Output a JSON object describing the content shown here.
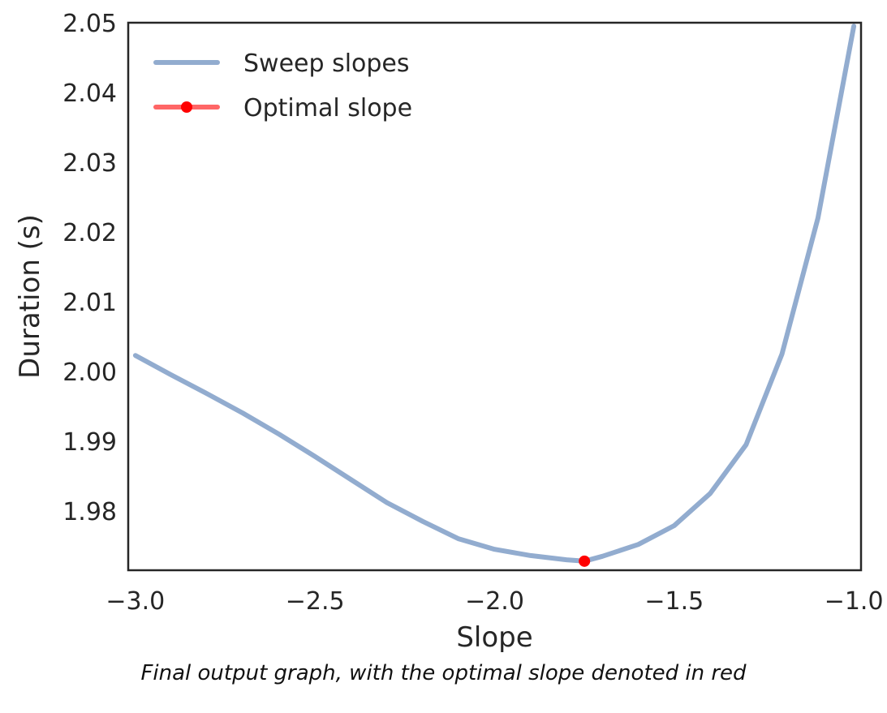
{
  "chart_data": {
    "type": "line",
    "xlabel": "Slope",
    "ylabel": "Duration (s)",
    "xlim": [
      -3.02,
      -0.98
    ],
    "ylim": [
      1.9715,
      2.05
    ],
    "x_ticks": [
      -3.0,
      -2.5,
      -2.0,
      -1.5,
      -1.0
    ],
    "x_tick_labels": [
      "−3.0",
      "−2.5",
      "−2.0",
      "−1.5",
      "−1.0"
    ],
    "y_ticks": [
      1.98,
      1.99,
      2.0,
      2.01,
      2.02,
      2.03,
      2.04,
      2.05
    ],
    "y_tick_labels": [
      "1.98",
      "1.99",
      "2.00",
      "2.01",
      "2.02",
      "2.03",
      "2.04",
      "2.05"
    ],
    "grid": false,
    "legend_position": "top-left",
    "series": [
      {
        "name": "Sweep slopes",
        "color": "#92accf",
        "x": [
          -3.0,
          -2.9,
          -2.8,
          -2.7,
          -2.6,
          -2.5,
          -2.4,
          -2.3,
          -2.2,
          -2.1,
          -2.0,
          -1.9,
          -1.8,
          -1.75,
          -1.7,
          -1.6,
          -1.5,
          -1.4,
          -1.3,
          -1.2,
          -1.1,
          -1.0
        ],
        "y": [
          2.0023,
          1.9995,
          1.9968,
          1.994,
          1.991,
          1.9878,
          1.9845,
          1.9812,
          1.9785,
          1.976,
          1.9745,
          1.9736,
          1.973,
          1.9728,
          1.9735,
          1.9752,
          1.9779,
          1.9825,
          1.9895,
          2.0025,
          2.022,
          2.0495
        ]
      },
      {
        "name": "Optimal slope",
        "color": "#ff0000",
        "line_color": "#ff6666",
        "x": [
          -1.75
        ],
        "y": [
          1.9728
        ]
      }
    ]
  },
  "caption": "Final output graph, with the optimal slope denoted in red"
}
